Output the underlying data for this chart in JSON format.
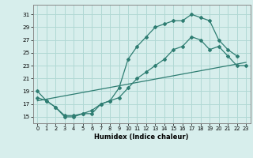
{
  "line1_x": [
    0,
    1,
    2,
    3,
    4,
    5,
    6,
    7,
    8,
    9,
    10,
    11,
    12,
    13,
    14,
    15,
    16,
    17,
    18,
    19,
    20,
    21,
    22
  ],
  "line1_y": [
    19,
    17.5,
    16.5,
    15,
    15,
    15.5,
    15.5,
    17,
    17.5,
    19.5,
    24.0,
    26.0,
    27.5,
    29.0,
    29.5,
    30.0,
    30.0,
    31.0,
    30.5,
    30.0,
    27.0,
    25.5,
    24.5
  ],
  "line2_x": [
    0,
    1,
    2,
    3,
    4,
    5,
    6,
    7,
    8,
    9,
    10,
    11,
    12,
    13,
    14,
    15,
    16,
    17,
    18,
    19,
    20,
    21,
    22,
    23
  ],
  "line2_y": [
    18.0,
    17.5,
    16.5,
    15.2,
    15.2,
    15.5,
    16.0,
    17.0,
    17.5,
    18.0,
    19.5,
    21.0,
    22.0,
    23.0,
    24.0,
    25.5,
    26.0,
    27.5,
    27.0,
    25.5,
    26.0,
    24.5,
    23.0,
    23.0
  ],
  "line3_x": [
    0,
    23
  ],
  "line3_y": [
    17.5,
    23.5
  ],
  "color": "#2e7d72",
  "bg_color": "#d7eeec",
  "grid_color": "#b0d8d4",
  "xlabel": "Humidex (Indice chaleur)",
  "yticks": [
    15,
    17,
    19,
    21,
    23,
    25,
    27,
    29,
    31
  ],
  "xticks": [
    0,
    1,
    2,
    3,
    4,
    5,
    6,
    7,
    8,
    9,
    10,
    11,
    12,
    13,
    14,
    15,
    16,
    17,
    18,
    19,
    20,
    21,
    22,
    23
  ],
  "xlim": [
    -0.5,
    23.5
  ],
  "ylim": [
    14.0,
    32.5
  ]
}
